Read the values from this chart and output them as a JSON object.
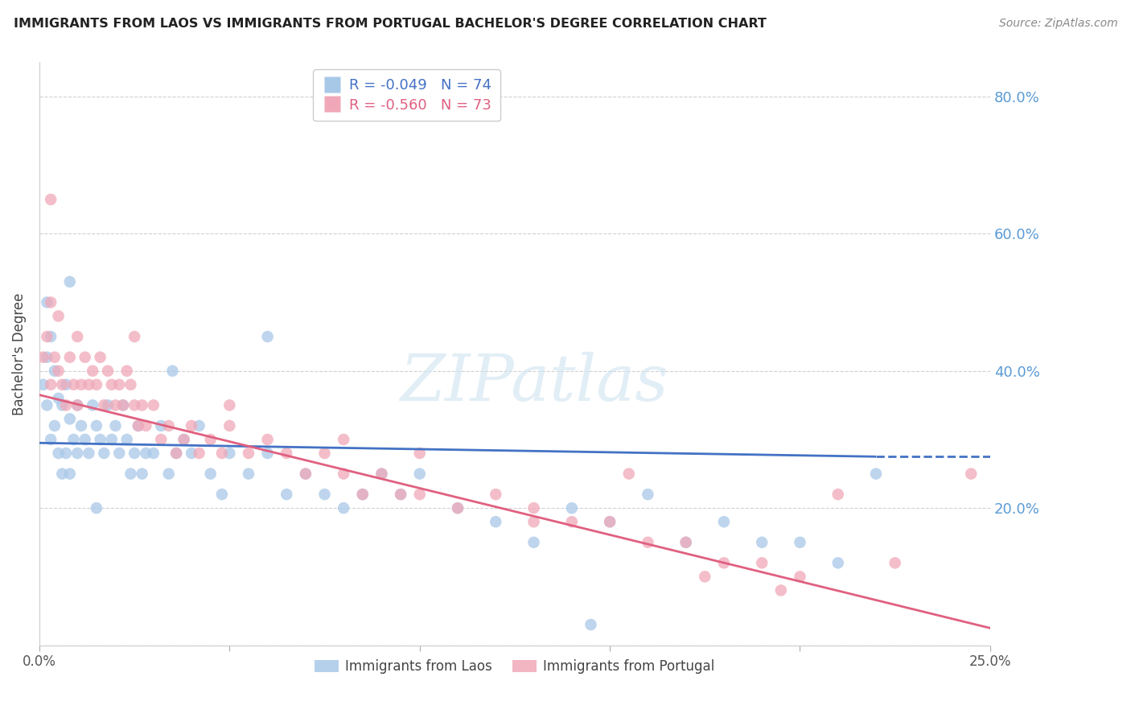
{
  "title": "IMMIGRANTS FROM LAOS VS IMMIGRANTS FROM PORTUGAL BACHELOR'S DEGREE CORRELATION CHART",
  "source": "Source: ZipAtlas.com",
  "xlabel_laos": "Immigrants from Laos",
  "xlabel_portugal": "Immigrants from Portugal",
  "ylabel": "Bachelor's Degree",
  "xlim": [
    0.0,
    0.25
  ],
  "ylim": [
    0.0,
    0.85
  ],
  "xtick_positions": [
    0.0,
    0.05,
    0.1,
    0.15,
    0.2,
    0.25
  ],
  "xtick_labels": [
    "0.0%",
    "",
    "",
    "",
    "",
    "25.0%"
  ],
  "yticks": [
    0.0,
    0.2,
    0.4,
    0.6,
    0.8
  ],
  "ytick_labels_right": [
    "",
    "20.0%",
    "40.0%",
    "60.0%",
    "80.0%"
  ],
  "R_laos": -0.049,
  "N_laos": 74,
  "R_portugal": -0.56,
  "N_portugal": 73,
  "blue_color": "#a8c8e8",
  "pink_color": "#f0a8b8",
  "blue_line_color": "#4472c4",
  "pink_line_color": "#e06080",
  "blue_text_color": "#4472c4",
  "pink_text_color": "#e06080",
  "watermark_color": "#d8e8f0",
  "laos_x": [
    0.001,
    0.002,
    0.002,
    0.003,
    0.003,
    0.004,
    0.004,
    0.005,
    0.005,
    0.006,
    0.006,
    0.007,
    0.007,
    0.008,
    0.008,
    0.009,
    0.01,
    0.01,
    0.011,
    0.012,
    0.013,
    0.014,
    0.015,
    0.016,
    0.017,
    0.018,
    0.019,
    0.02,
    0.021,
    0.022,
    0.023,
    0.024,
    0.025,
    0.026,
    0.027,
    0.028,
    0.03,
    0.032,
    0.034,
    0.036,
    0.038,
    0.04,
    0.042,
    0.045,
    0.048,
    0.05,
    0.055,
    0.06,
    0.065,
    0.07,
    0.075,
    0.08,
    0.085,
    0.09,
    0.095,
    0.1,
    0.11,
    0.12,
    0.13,
    0.14,
    0.15,
    0.16,
    0.17,
    0.18,
    0.19,
    0.2,
    0.21,
    0.22,
    0.002,
    0.008,
    0.015,
    0.035,
    0.06,
    0.145
  ],
  "laos_y": [
    0.38,
    0.35,
    0.42,
    0.3,
    0.45,
    0.32,
    0.4,
    0.36,
    0.28,
    0.35,
    0.25,
    0.38,
    0.28,
    0.33,
    0.25,
    0.3,
    0.35,
    0.28,
    0.32,
    0.3,
    0.28,
    0.35,
    0.32,
    0.3,
    0.28,
    0.35,
    0.3,
    0.32,
    0.28,
    0.35,
    0.3,
    0.25,
    0.28,
    0.32,
    0.25,
    0.28,
    0.28,
    0.32,
    0.25,
    0.28,
    0.3,
    0.28,
    0.32,
    0.25,
    0.22,
    0.28,
    0.25,
    0.28,
    0.22,
    0.25,
    0.22,
    0.2,
    0.22,
    0.25,
    0.22,
    0.25,
    0.2,
    0.18,
    0.15,
    0.2,
    0.18,
    0.22,
    0.15,
    0.18,
    0.15,
    0.15,
    0.12,
    0.25,
    0.5,
    0.53,
    0.2,
    0.4,
    0.45,
    0.03
  ],
  "portugal_x": [
    0.001,
    0.002,
    0.003,
    0.003,
    0.004,
    0.005,
    0.005,
    0.006,
    0.007,
    0.008,
    0.009,
    0.01,
    0.011,
    0.012,
    0.013,
    0.014,
    0.015,
    0.016,
    0.017,
    0.018,
    0.019,
    0.02,
    0.021,
    0.022,
    0.023,
    0.024,
    0.025,
    0.026,
    0.027,
    0.028,
    0.03,
    0.032,
    0.034,
    0.036,
    0.038,
    0.04,
    0.042,
    0.045,
    0.048,
    0.05,
    0.055,
    0.06,
    0.065,
    0.07,
    0.075,
    0.08,
    0.085,
    0.09,
    0.095,
    0.1,
    0.11,
    0.12,
    0.13,
    0.14,
    0.15,
    0.16,
    0.17,
    0.18,
    0.19,
    0.2,
    0.003,
    0.01,
    0.025,
    0.05,
    0.08,
    0.1,
    0.13,
    0.155,
    0.175,
    0.195,
    0.21,
    0.225,
    0.245
  ],
  "portugal_y": [
    0.42,
    0.45,
    0.38,
    0.5,
    0.42,
    0.4,
    0.48,
    0.38,
    0.35,
    0.42,
    0.38,
    0.45,
    0.38,
    0.42,
    0.38,
    0.4,
    0.38,
    0.42,
    0.35,
    0.4,
    0.38,
    0.35,
    0.38,
    0.35,
    0.4,
    0.38,
    0.35,
    0.32,
    0.35,
    0.32,
    0.35,
    0.3,
    0.32,
    0.28,
    0.3,
    0.32,
    0.28,
    0.3,
    0.28,
    0.32,
    0.28,
    0.3,
    0.28,
    0.25,
    0.28,
    0.25,
    0.22,
    0.25,
    0.22,
    0.22,
    0.2,
    0.22,
    0.2,
    0.18,
    0.18,
    0.15,
    0.15,
    0.12,
    0.12,
    0.1,
    0.65,
    0.35,
    0.45,
    0.35,
    0.3,
    0.28,
    0.18,
    0.25,
    0.1,
    0.08,
    0.22,
    0.12,
    0.25
  ],
  "blue_line_x": [
    0.0,
    0.22,
    0.25
  ],
  "blue_line_y": [
    0.295,
    0.275,
    0.275
  ],
  "blue_line_solid_end": 0.22,
  "pink_line_x": [
    0.0,
    0.25
  ],
  "pink_line_y": [
    0.365,
    0.025
  ]
}
